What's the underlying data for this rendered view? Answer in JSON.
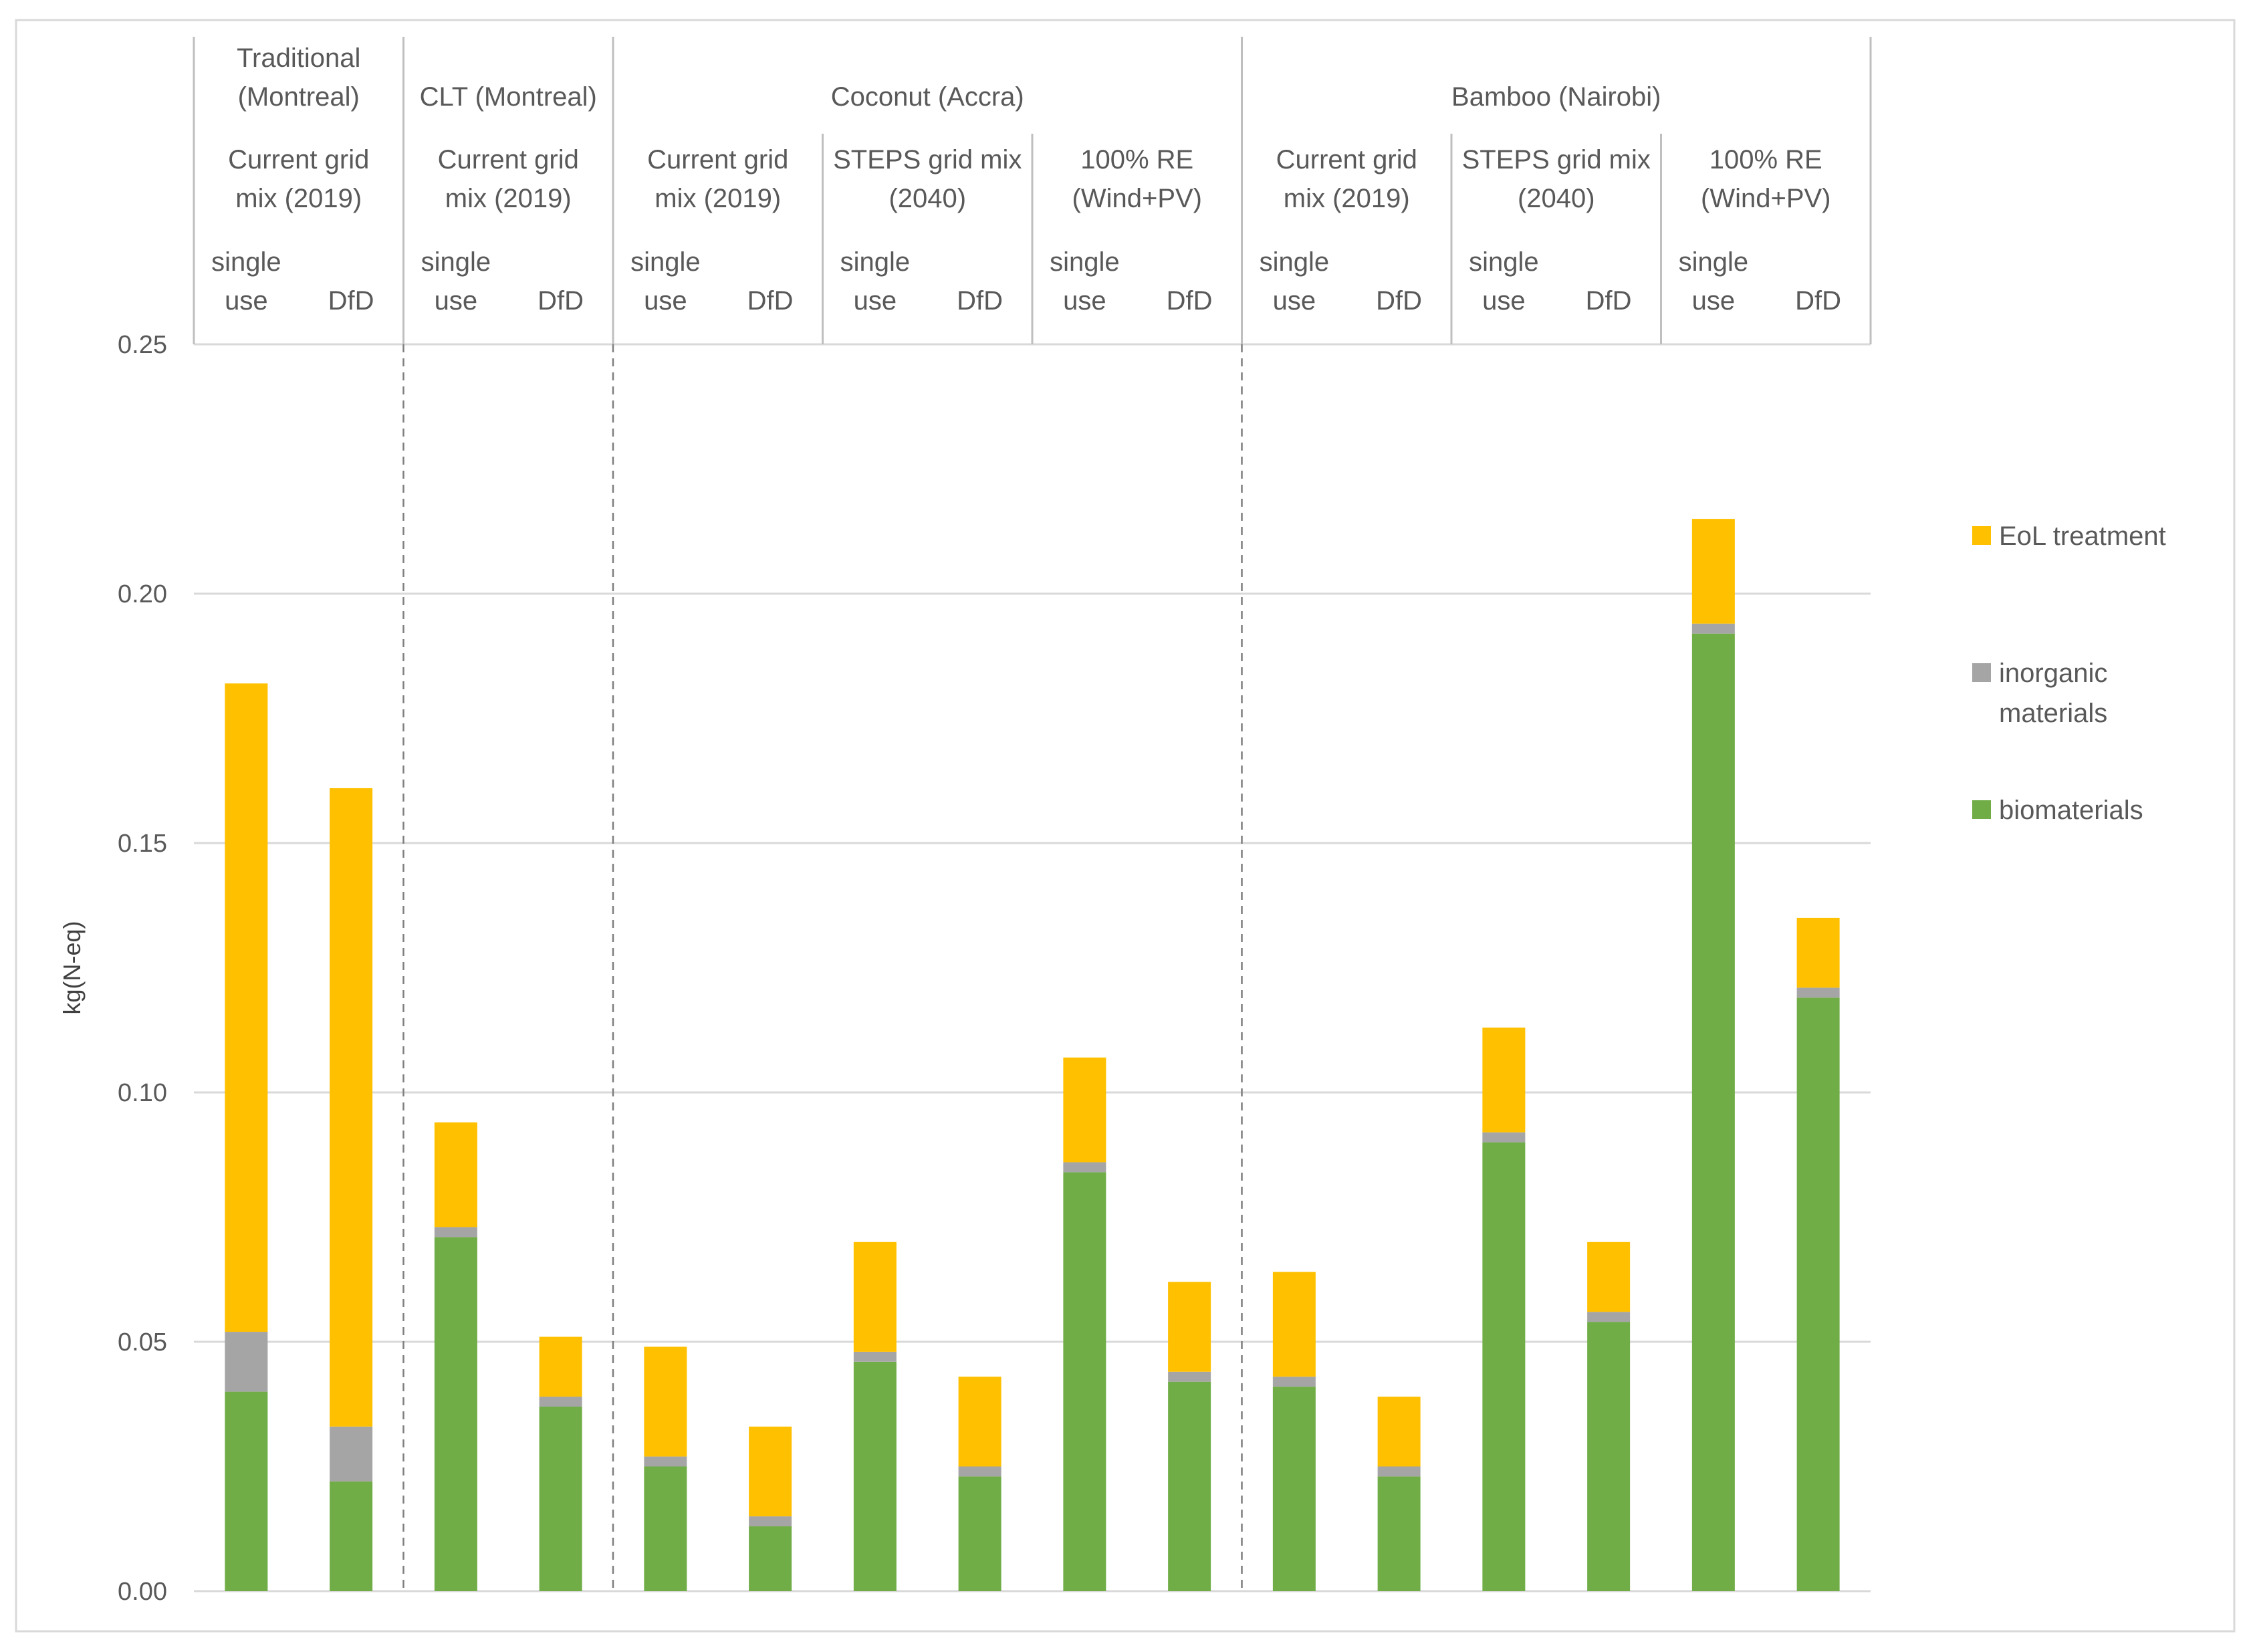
{
  "chart_data": {
    "type": "bar",
    "stacked": true,
    "ylabel": "kg(N-eq)",
    "xlabel": "",
    "title": "",
    "ylim": [
      0,
      0.25
    ],
    "yticks": [
      "0.00",
      "0.05",
      "0.10",
      "0.15",
      "0.20",
      "0.25"
    ],
    "ytick_values": [
      0,
      0.05,
      0.1,
      0.15,
      0.2,
      0.25
    ],
    "grid": true,
    "legend_position": "right",
    "colors": {
      "biomaterials": "#70AD47",
      "inorganic": "#A5A5A5",
      "eol": "#FFC000",
      "grid": "#D9D9D9",
      "frame": "#BFBFBF",
      "separator": "#7F7F7F",
      "text": "#595959"
    },
    "series": [
      {
        "name": "biomaterials",
        "color": "#70AD47",
        "values": [
          0.04,
          0.022,
          0.071,
          0.037,
          0.025,
          0.013,
          0.046,
          0.023,
          0.084,
          0.042,
          0.041,
          0.023,
          0.09,
          0.054,
          0.192,
          0.119
        ]
      },
      {
        "name": "inorganic materials",
        "color": "#A5A5A5",
        "values": [
          0.012,
          0.011,
          0.002,
          0.002,
          0.002,
          0.002,
          0.002,
          0.002,
          0.002,
          0.002,
          0.002,
          0.002,
          0.002,
          0.002,
          0.002,
          0.002
        ]
      },
      {
        "name": "EoL treatment",
        "color": "#FFC000",
        "values": [
          0.13,
          0.128,
          0.021,
          0.012,
          0.022,
          0.018,
          0.022,
          0.018,
          0.021,
          0.018,
          0.021,
          0.014,
          0.021,
          0.014,
          0.021,
          0.014
        ]
      }
    ],
    "categories": [
      "single use",
      "DfD",
      "single use",
      "DfD",
      "single use",
      "DfD",
      "single use",
      "DfD",
      "single use",
      "DfD",
      "single use",
      "DfD",
      "single use",
      "DfD",
      "single use",
      "DfD"
    ],
    "legend": [
      {
        "label": "EoL treatment",
        "color": "#FFC000"
      },
      {
        "label": "inorganic materials",
        "color": "#A5A5A5"
      },
      {
        "label": "biomaterials",
        "color": "#70AD47"
      }
    ],
    "header": {
      "groups": [
        {
          "lines": [
            "Traditional",
            "(Montreal)"
          ],
          "start": 0,
          "end": 2
        },
        {
          "lines": [
            "CLT (Montreal)"
          ],
          "start": 2,
          "end": 4
        },
        {
          "lines": [
            "Coconut (Accra)"
          ],
          "start": 4,
          "end": 10
        },
        {
          "lines": [
            "Bamboo (Nairobi)"
          ],
          "start": 10,
          "end": 16
        }
      ],
      "scenarios": [
        {
          "lines": [
            "Current grid",
            "mix (2019)"
          ],
          "start": 0,
          "end": 2
        },
        {
          "lines": [
            "Current grid",
            "mix (2019)"
          ],
          "start": 2,
          "end": 4
        },
        {
          "lines": [
            "Current grid",
            "mix (2019)"
          ],
          "start": 4,
          "end": 6
        },
        {
          "lines": [
            "STEPS grid mix",
            "(2040)"
          ],
          "start": 6,
          "end": 8
        },
        {
          "lines": [
            "100% RE",
            "(Wind+PV)"
          ],
          "start": 8,
          "end": 10
        },
        {
          "lines": [
            "Current grid",
            "mix (2019)"
          ],
          "start": 10,
          "end": 12
        },
        {
          "lines": [
            "STEPS grid mix",
            "(2040)"
          ],
          "start": 12,
          "end": 14
        },
        {
          "lines": [
            "100% RE",
            "(Wind+PV)"
          ],
          "start": 14,
          "end": 16
        }
      ],
      "bar_labels": [
        [
          "single",
          "use"
        ],
        [
          "DfD"
        ],
        [
          "single",
          "use"
        ],
        [
          "DfD"
        ],
        [
          "single",
          "use"
        ],
        [
          "DfD"
        ],
        [
          "single",
          "use"
        ],
        [
          "DfD"
        ],
        [
          "single",
          "use"
        ],
        [
          "DfD"
        ],
        [
          "single",
          "use"
        ],
        [
          "DfD"
        ],
        [
          "single",
          "use"
        ],
        [
          "DfD"
        ],
        [
          "single",
          "use"
        ],
        [
          "DfD"
        ]
      ],
      "dashed_separators_after": [
        2,
        4,
        10
      ]
    }
  }
}
